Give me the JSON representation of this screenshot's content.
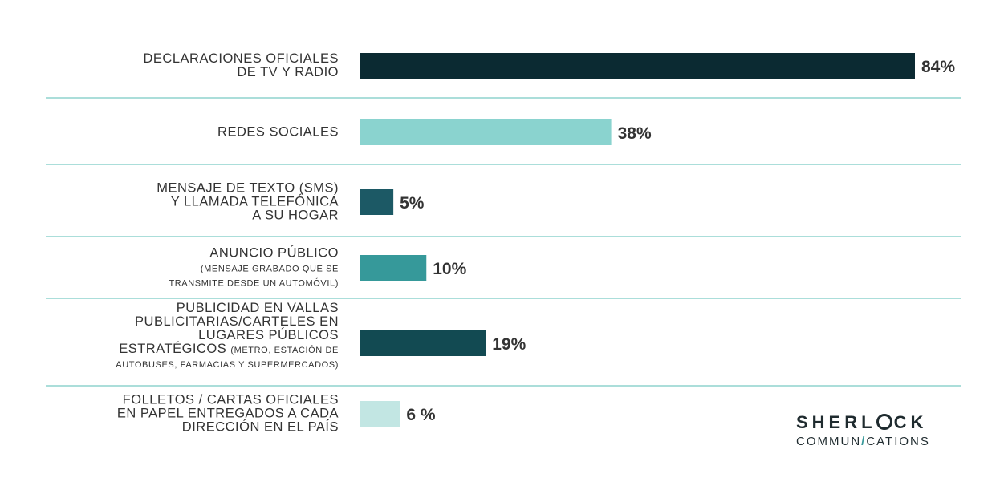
{
  "chart_data": {
    "type": "bar",
    "orientation": "horizontal",
    "categories": [
      {
        "lines": [
          "DECLARACIONES OFICIALES",
          "DE TV Y RADIO"
        ],
        "small_lines": []
      },
      {
        "lines": [
          "REDES SOCIALES"
        ],
        "small_lines": []
      },
      {
        "lines": [
          "MENSAJE DE TEXTO (SMS)",
          "Y LLAMADA TELEFÓNICA",
          "A SU HOGAR"
        ],
        "small_lines": []
      },
      {
        "lines": [
          "ANUNCIO PÚBLICO"
        ],
        "small_lines": [
          "(MENSAJE GRABADO QUE SE",
          "TRANSMITE DESDE UN AUTOMÓVIL)"
        ]
      },
      {
        "lines": [
          "PUBLICIDAD EN VALLAS",
          "PUBLICITARIAS/CARTELES EN",
          "LUGARES PÚBLICOS",
          "ESTRATÉGICOS"
        ],
        "small_lines": [
          "(METRO, ESTACIÓN DE",
          "AUTOBUSES, FARMACIAS Y SUPERMERCADOS)"
        ]
      },
      {
        "lines": [
          "FOLLETOS / CARTAS OFICIALES",
          "EN PAPEL ENTREGADOS A CADA",
          "DIRECCIÓN EN EL PAÍS"
        ],
        "small_lines": []
      }
    ],
    "values": [
      84,
      38,
      5,
      10,
      19,
      6
    ],
    "value_labels": [
      "84%",
      "38%",
      "5%",
      "10%",
      "19%",
      "6 %"
    ],
    "bar_colors": [
      "#0b2a32",
      "#8ad3cf",
      "#1c5965",
      "#36999a",
      "#124a52",
      "#c2e6e3"
    ],
    "divider_color": "#8fd3ce",
    "xlim": [
      0,
      84
    ],
    "grid": false,
    "legend": "none"
  },
  "logo": {
    "word_top_before": "SHERL",
    "word_top_after": "CK",
    "word_bottom_before": "COMMUN",
    "word_bottom_slash": "/",
    "word_bottom_after": "CATIONS"
  }
}
